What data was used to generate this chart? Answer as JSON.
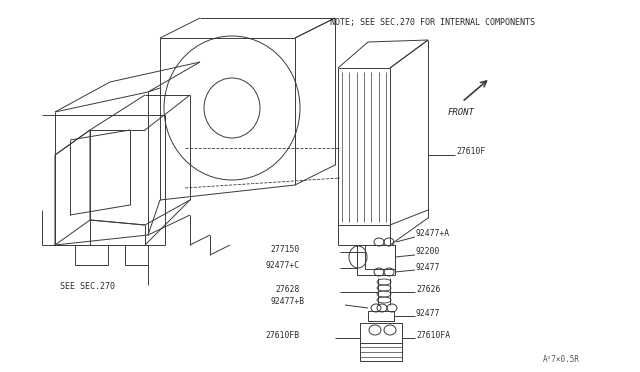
{
  "bg_color": "#ffffff",
  "line_color": "#3a3a3a",
  "note_text": "NOTE; SEE SEC.270 FOR INTERNAL COMPONENTS",
  "front_label": "FRONT",
  "see_sec_label": "SEE SEC.270",
  "bottom_code": "A²7 ×0.5R"
}
